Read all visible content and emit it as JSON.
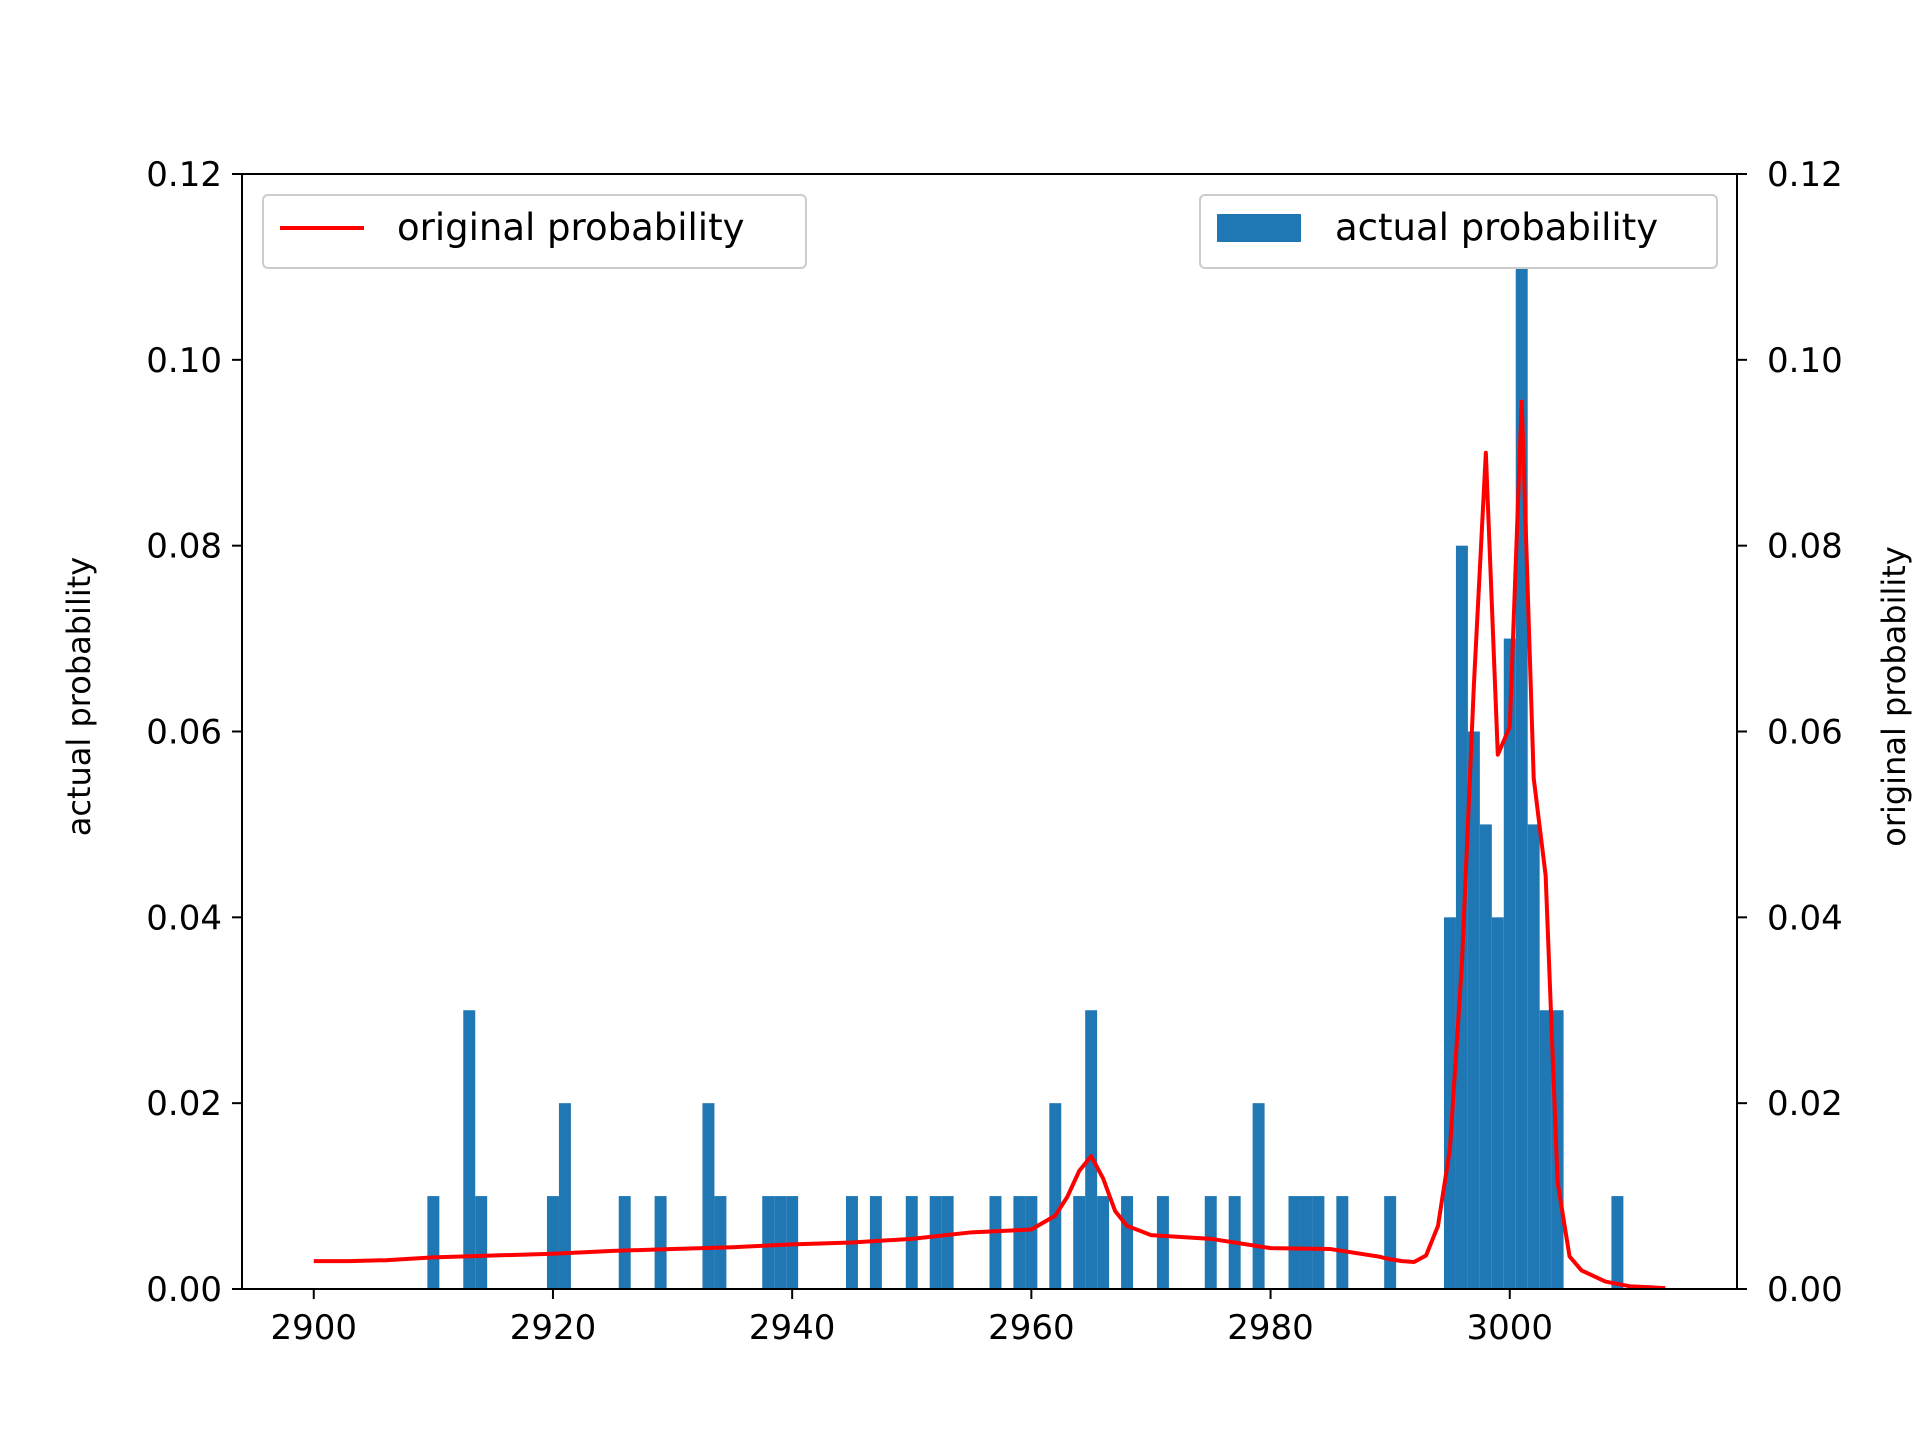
{
  "chart_data": {
    "type": "bar",
    "title": "",
    "xlabel": "",
    "ylabel": "actual probability",
    "y2label": "original probability",
    "xlim": [
      2894,
      3019
    ],
    "xticks": [
      2900,
      2920,
      2940,
      2960,
      2980,
      3000
    ],
    "ylim": [
      0,
      0.12
    ],
    "y2lim": [
      0,
      0.12
    ],
    "yticks": [
      0.0,
      0.02,
      0.04,
      0.06,
      0.08,
      0.1,
      0.12
    ],
    "ytick_labels": [
      "0.00",
      "0.02",
      "0.04",
      "0.06",
      "0.08",
      "0.10",
      "0.12"
    ],
    "xtick_labels": [
      "2900",
      "2920",
      "2940",
      "2960",
      "2980",
      "3000"
    ],
    "grid": false,
    "bar_width": 1,
    "bar_series": {
      "name": "actual probability",
      "axis": "left",
      "color": "#1f77b4",
      "x": [
        2910,
        2913,
        2914,
        2920,
        2921,
        2926,
        2929,
        2933,
        2934,
        2938,
        2939,
        2940,
        2945,
        2947,
        2950,
        2952,
        2953,
        2957,
        2959,
        2960,
        2962,
        2964,
        2965,
        2966,
        2968,
        2971,
        2975,
        2977,
        2979,
        2982,
        2983,
        2984,
        2986,
        2990,
        2995,
        2996,
        2997,
        2998,
        2999,
        3000,
        3001,
        3002,
        3003,
        3004,
        3009
      ],
      "values": [
        0.01,
        0.03,
        0.01,
        0.01,
        0.02,
        0.01,
        0.01,
        0.02,
        0.01,
        0.01,
        0.01,
        0.01,
        0.01,
        0.01,
        0.01,
        0.01,
        0.01,
        0.01,
        0.01,
        0.01,
        0.02,
        0.01,
        0.03,
        0.01,
        0.01,
        0.01,
        0.01,
        0.01,
        0.02,
        0.01,
        0.01,
        0.01,
        0.01,
        0.01,
        0.04,
        0.08,
        0.06,
        0.05,
        0.04,
        0.07,
        0.11,
        0.05,
        0.03,
        0.03,
        0.01
      ]
    },
    "line_series": {
      "name": "original probability",
      "axis": "right",
      "color": "#ff0000",
      "x": [
        2900,
        2903,
        2906,
        2910,
        2915,
        2920,
        2925,
        2930,
        2935,
        2940,
        2945,
        2950,
        2955,
        2960,
        2962,
        2963,
        2964,
        2965,
        2966,
        2967,
        2968,
        2970,
        2975,
        2980,
        2985,
        2989,
        2990,
        2991,
        2992,
        2993,
        2994,
        2995,
        2996,
        2997,
        2998,
        2999,
        3000,
        3001,
        3002,
        3003,
        3004,
        3005,
        3006,
        3008,
        3010,
        3013
      ],
      "values": [
        0.003,
        0.003,
        0.0031,
        0.0034,
        0.0036,
        0.0038,
        0.0041,
        0.0043,
        0.0045,
        0.0048,
        0.005,
        0.0054,
        0.0061,
        0.0064,
        0.0079,
        0.0099,
        0.0127,
        0.0143,
        0.0119,
        0.0084,
        0.0068,
        0.0058,
        0.0054,
        0.0044,
        0.0043,
        0.0035,
        0.0032,
        0.003,
        0.0029,
        0.0036,
        0.0068,
        0.0151,
        0.035,
        0.065,
        0.09,
        0.0575,
        0.0605,
        0.0955,
        0.055,
        0.0445,
        0.0115,
        0.0035,
        0.002,
        0.0008,
        0.0003,
        0.0001
      ]
    },
    "legends": [
      {
        "label": "original probability",
        "placement": "upper left"
      },
      {
        "label": "actual probability",
        "placement": "upper right"
      }
    ]
  }
}
